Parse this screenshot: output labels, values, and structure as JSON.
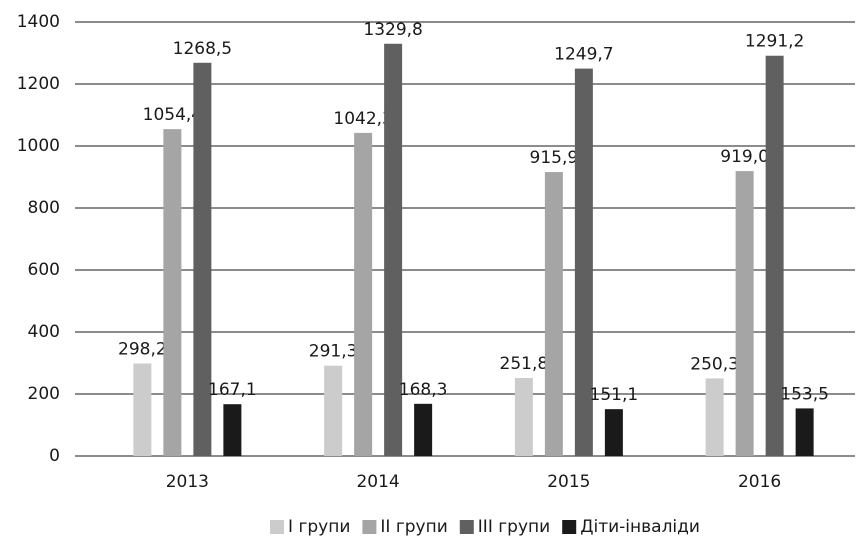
{
  "chart_data": {
    "type": "bar",
    "categories": [
      "2013",
      "2014",
      "2015",
      "2016"
    ],
    "series": [
      {
        "name": "І групи",
        "color": "#cccccc",
        "values": [
          298.2,
          291.3,
          251.8,
          250.3
        ],
        "value_labels": [
          "298,2",
          "291,3",
          "251,8",
          "250,3"
        ]
      },
      {
        "name": "ІІ групи",
        "color": "#a5a5a5",
        "values": [
          1054.4,
          1042.3,
          915.9,
          919.0
        ],
        "value_labels": [
          "1054,4",
          "1042,3",
          "915,9",
          "919,0"
        ]
      },
      {
        "name": "ІІІ групи",
        "color": "#606060",
        "values": [
          1268.5,
          1329.8,
          1249.7,
          1291.2
        ],
        "value_labels": [
          "1268,5",
          "1329,8",
          "1249,7",
          "1291,2"
        ]
      },
      {
        "name": "Діти-інваліди",
        "color": "#1a1a1a",
        "values": [
          167.1,
          168.3,
          151.1,
          153.5
        ],
        "value_labels": [
          "167,1",
          "168,3",
          "151,1",
          "153,5"
        ]
      }
    ],
    "ylim": [
      0,
      1400
    ],
    "yticks": [
      0,
      200,
      400,
      600,
      800,
      1000,
      1200,
      1400
    ],
    "grid": true,
    "legend": "bottom"
  }
}
